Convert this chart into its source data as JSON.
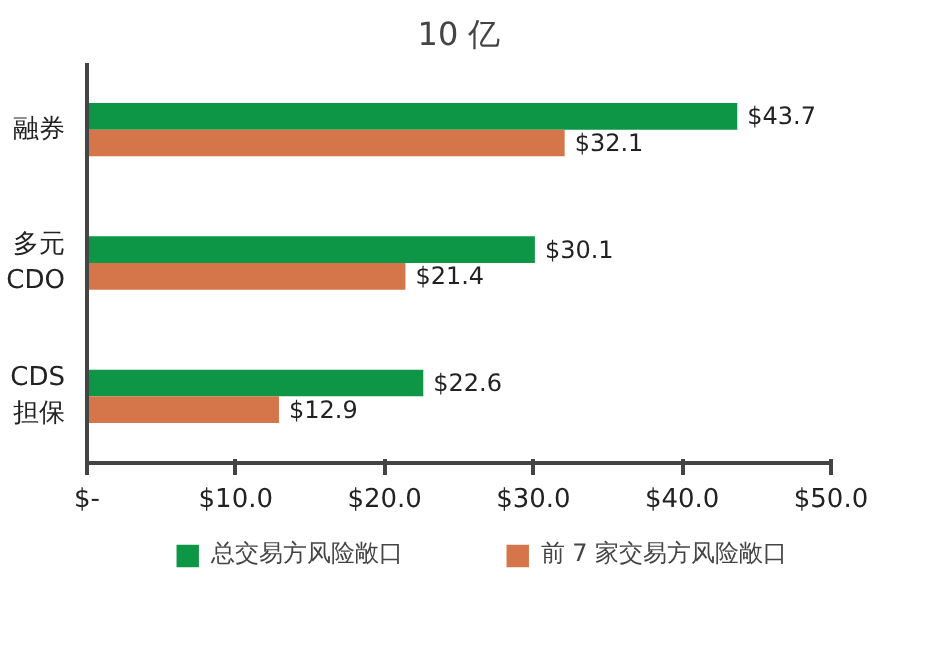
{
  "chart_data": {
    "type": "bar",
    "orientation": "horizontal",
    "title": "10 亿",
    "categories": [
      "融券",
      "多元\nCDO",
      "CDS\n担保"
    ],
    "series": [
      {
        "name": "总交易方风险敞口",
        "color": "#0e9647",
        "values": [
          43.7,
          30.1,
          22.6
        ],
        "value_labels": [
          "$43.7",
          "$30.1",
          "$22.6"
        ]
      },
      {
        "name": "前 7 家交易方风险敞口",
        "color": "#d4764a",
        "values": [
          32.1,
          21.4,
          12.9
        ],
        "value_labels": [
          "$32.1",
          "$21.4",
          "$12.9"
        ]
      }
    ],
    "xlim": [
      0,
      50
    ],
    "xticks": [
      {
        "value": 0,
        "label": "$-"
      },
      {
        "value": 10,
        "label": "$10.0"
      },
      {
        "value": 20,
        "label": "$20.0"
      },
      {
        "value": 30,
        "label": "$30.0"
      },
      {
        "value": 40,
        "label": "$40.0"
      },
      {
        "value": 50,
        "label": "$50.0"
      }
    ],
    "grid": false,
    "legend": "bottom"
  }
}
